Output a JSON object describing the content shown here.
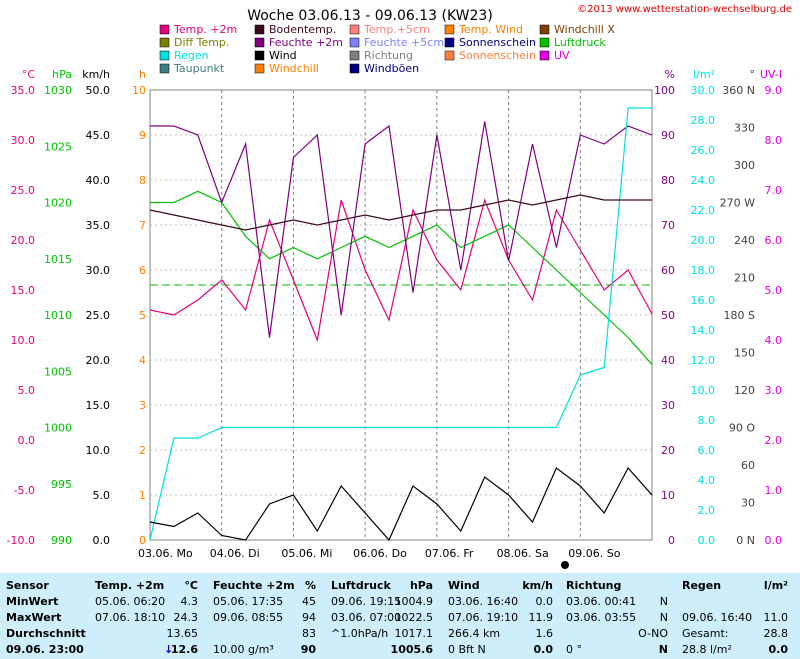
{
  "chart_data": {
    "type": "line",
    "title": "Woche 03.06.13 - 09.06.13 (KW23)",
    "copyright": "©2013 www.wetterstation-wechselburg.de",
    "legend": [
      {
        "name": "Temp. +2m",
        "color": "#e4007c"
      },
      {
        "name": "Bodentemp.",
        "color": "#3b0a1e"
      },
      {
        "name": "Temp.+5cm",
        "color": "#ff7f7f"
      },
      {
        "name": "Temp. Wind",
        "color": "#ff7f00"
      },
      {
        "name": "Windchill X",
        "color": "#7f3f00"
      },
      {
        "name": "Diff Temp.",
        "color": "#7f7f00"
      },
      {
        "name": "Feuchte +2m",
        "color": "#7f007f"
      },
      {
        "name": "Feuchte +5cm",
        "color": "#7f7fff"
      },
      {
        "name": "Sonnenschein",
        "color": "#00007f"
      },
      {
        "name": "Luftdruck",
        "color": "#00c000"
      },
      {
        "name": "Regen",
        "color": "#00e0e0"
      },
      {
        "name": "Wind",
        "color": "#000000"
      },
      {
        "name": "Richtung",
        "color": "#7f7f7f"
      },
      {
        "name": "Sonnenschein",
        "color": "#ff7f3f"
      },
      {
        "name": "UV",
        "color": "#e000e0"
      },
      {
        "name": "Taupunkt",
        "color": "#3f7f7f"
      },
      {
        "name": "Windchill",
        "color": "#ff7f00"
      },
      {
        "name": "Windböen",
        "color": "#00007f"
      }
    ],
    "axes": {
      "temp": {
        "unit": "°C",
        "ticks": [
          "35.0",
          "30.0",
          "25.0",
          "20.0",
          "15.0",
          "10.0",
          "5.0",
          "0.0",
          "-5.0",
          "-10.0"
        ],
        "range": [
          -10,
          35
        ]
      },
      "pressure": {
        "unit": "hPa",
        "ticks": [
          "1030",
          "1025",
          "1020",
          "1015",
          "1010",
          "1005",
          "1000",
          "995",
          "990"
        ],
        "range": [
          990,
          1030
        ]
      },
      "wind": {
        "unit": "km/h",
        "ticks": [
          "50.0",
          "45.0",
          "40.0",
          "35.0",
          "30.0",
          "25.0",
          "20.0",
          "15.0",
          "10.0",
          "5.0",
          "0.0"
        ],
        "range": [
          0,
          50
        ]
      },
      "sun": {
        "unit": "h",
        "ticks": [
          "10",
          "9",
          "8",
          "7",
          "6",
          "5",
          "4",
          "3",
          "2",
          "1",
          "0"
        ],
        "range": [
          0,
          10
        ]
      },
      "humidity": {
        "unit": "%",
        "ticks": [
          "100",
          "90",
          "80",
          "70",
          "60",
          "50",
          "40",
          "30",
          "20",
          "10",
          "0"
        ],
        "range": [
          0,
          100
        ]
      },
      "rain": {
        "unit": "l/m²",
        "ticks": [
          "30.0",
          "28.0",
          "26.0",
          "24.0",
          "22.0",
          "20.0",
          "18.0",
          "16.0",
          "14.0",
          "12.0",
          "10.0",
          "8.0",
          "6.0",
          "4.0",
          "2.0",
          "0.0"
        ],
        "range": [
          0,
          30
        ]
      },
      "direction": {
        "unit": "°",
        "ticks": [
          "360 N",
          "330",
          "300",
          "270 W",
          "240",
          "210",
          "180 S",
          "150",
          "120",
          "90 O",
          "60",
          "30",
          "0 N"
        ],
        "range": [
          0,
          360
        ]
      },
      "uv": {
        "unit": "UV-I",
        "ticks": [
          "9.0",
          "8.0",
          "7.0",
          "6.0",
          "5.0",
          "4.0",
          "3.0",
          "2.0",
          "1.0",
          "0.0"
        ],
        "range": [
          0,
          9
        ]
      }
    },
    "x_labels": [
      "03.06. Mo",
      "04.06. Di",
      "05.06. Mi",
      "06.06. Do",
      "07.06. Fr",
      "08.06. Sa",
      "09.06. So"
    ],
    "series": [
      {
        "name": "Temp. +2m",
        "values": [
          13,
          12.5,
          14,
          16,
          13,
          22,
          16,
          10,
          24,
          17,
          12,
          23,
          18,
          15,
          24,
          18,
          14,
          23,
          19,
          15,
          17,
          12.6
        ]
      },
      {
        "name": "Luftdruck",
        "values": [
          1020,
          1020,
          1021,
          1020,
          1017,
          1015,
          1016,
          1015,
          1016,
          1017,
          1016,
          1017,
          1018,
          1016,
          1017,
          1018,
          1016,
          1014,
          1012,
          1010,
          1008,
          1005.6
        ]
      },
      {
        "name": "Feuchte +2m",
        "values": [
          92,
          92,
          90,
          75,
          88,
          45,
          85,
          90,
          50,
          88,
          92,
          55,
          90,
          60,
          93,
          62,
          88,
          65,
          90,
          88,
          92,
          90
        ]
      },
      {
        "name": "Regen",
        "values": [
          0,
          6.8,
          6.8,
          7.5,
          7.5,
          7.5,
          7.5,
          7.5,
          7.5,
          7.5,
          7.5,
          7.5,
          7.5,
          7.5,
          7.5,
          7.5,
          7.5,
          7.5,
          11,
          11.5,
          28.8,
          28.8
        ]
      },
      {
        "name": "Bodentemp.",
        "values": [
          23,
          22.5,
          22,
          21.5,
          21,
          21.5,
          22,
          21.5,
          22,
          22.5,
          22,
          22.5,
          23,
          23,
          23.5,
          24,
          23.5,
          24,
          24.5,
          24,
          24,
          24
        ]
      },
      {
        "name": "Wind",
        "values": [
          2,
          1.5,
          3,
          0.5,
          0,
          4,
          5,
          1,
          6,
          3,
          0,
          6,
          4,
          1,
          7,
          5,
          2,
          8,
          6,
          3,
          8,
          5
        ]
      }
    ]
  },
  "table": {
    "headers": [
      "Sensor",
      "Temp. +2m",
      "°C",
      "Feuchte +2m",
      "%",
      "Luftdruck",
      "hPa",
      "Wind",
      "km/h",
      "Richtung",
      "Regen",
      "l/m²"
    ],
    "rows": [
      {
        "label": "MinWert",
        "temp_time": "05.06.  06:20",
        "temp_val": "4.3",
        "hum_time": "05.06.  17:35",
        "hum_val": "45",
        "press_time": "09.06.  19:15",
        "press_val": "1004.9",
        "wind_time": "03.06.  16:40",
        "wind_val": "0.0",
        "dir_time": "03.06.  00:41",
        "dir_val": "N",
        "rain_time": "",
        "rain_val": ""
      },
      {
        "label": "MaxWert",
        "temp_time": "07.06.  18:10",
        "temp_val": "24.3",
        "hum_time": "09.06.  08:55",
        "hum_val": "94",
        "press_time": "03.06.  07:00",
        "press_val": "1022.5",
        "wind_time": "07.06.  19:10",
        "wind_val": "11.9",
        "dir_time": "03.06.  03:55",
        "dir_val": "N",
        "rain_time": "09.06.  16:40",
        "rain_val": "11.0"
      },
      {
        "label": "Durchschnitt",
        "temp_time": "",
        "temp_val": "13.65",
        "hum_time": "",
        "hum_val": "83",
        "press_time": "^1.0hPa/h",
        "press_val": "1017.1",
        "wind_time": "266.4 km",
        "wind_val": "1.6",
        "dir_time": "",
        "dir_val": "O-NO",
        "rain_time": "Gesamt:",
        "rain_val": "28.8"
      },
      {
        "label": "09.06.  23:00",
        "temp_time": "",
        "temp_val": "12.6",
        "hum_time": "10.00 g/m³",
        "hum_val": "90",
        "press_time": "",
        "press_val": "1005.6",
        "wind_time": "0 Bft N",
        "wind_val": "0.0",
        "dir_time": "0 °",
        "dir_val": "N",
        "rain_time": "28.8 l/m²",
        "rain_val": "0.0"
      }
    ]
  }
}
